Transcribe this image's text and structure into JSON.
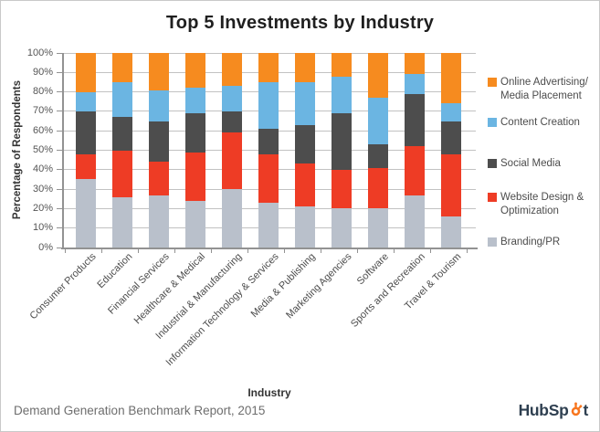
{
  "title": "Top 5 Investments by Industry",
  "footer": {
    "source": "Demand Generation Benchmark Report, 2015",
    "logo_text_pre": "HubSp",
    "logo_text_post": "t",
    "logo_text_color": "#2e3f50",
    "logo_icon_color": "#f8761f"
  },
  "colors": {
    "online_advertising": "#f68b1f",
    "content_creation": "#6bb5e2",
    "social_media": "#4d4d4d",
    "website_design": "#ee3c25",
    "branding_pr": "#b9c0cb",
    "gridline": "#c2c2c2",
    "axis": "#929292"
  },
  "chart_data": {
    "type": "bar",
    "stacked": true,
    "title": "Top 5 Investments by Industry",
    "xlabel": "Industry",
    "ylabel": "Percentage of Respondents",
    "ylim": [
      0,
      100
    ],
    "ytick_step": 10,
    "ytick_suffix": "%",
    "grid": true,
    "legend_position": "right",
    "categories": [
      "Consumer Products",
      "Education",
      "Financial Services",
      "Healthcare & Medical",
      "Industrial & Manufacturing",
      "Information Technology & Services",
      "Media & Publishing",
      "Marketing Agencies",
      "Software",
      "Sports and Recreation",
      "Travel & Tourism"
    ],
    "series": [
      {
        "name": "Branding/PR",
        "color": "#b9c0cb",
        "values": [
          35,
          26,
          27,
          24,
          30,
          23,
          21,
          20,
          20,
          27,
          16
        ]
      },
      {
        "name": "Website Design & Optimization",
        "color": "#ee3c25",
        "values": [
          13,
          24,
          17,
          25,
          29,
          25,
          22,
          20,
          21,
          25,
          32
        ]
      },
      {
        "name": "Social Media",
        "color": "#4d4d4d",
        "values": [
          22,
          17,
          21,
          20,
          11,
          13,
          20,
          29,
          12,
          27,
          17
        ]
      },
      {
        "name": "Content Creation",
        "color": "#6bb5e2",
        "values": [
          10,
          18,
          16,
          13,
          13,
          24,
          22,
          19,
          24,
          10,
          9
        ]
      },
      {
        "name": "Online Advertising/ Media Placement",
        "color": "#f68b1f",
        "values": [
          20,
          15,
          19,
          18,
          17,
          15,
          15,
          12,
          23,
          11,
          26
        ]
      }
    ],
    "legend": [
      {
        "lines": [
          "Online Advertising/",
          "Media Placement"
        ],
        "color": "#f68b1f"
      },
      {
        "lines": [
          "Content Creation"
        ],
        "color": "#6bb5e2"
      },
      {
        "lines": [
          "Social Media"
        ],
        "color": "#4d4d4d"
      },
      {
        "lines": [
          "Website Design &",
          "Optimization"
        ],
        "color": "#ee3c25"
      },
      {
        "lines": [
          "Branding/PR"
        ],
        "color": "#b9c0cb"
      }
    ]
  }
}
